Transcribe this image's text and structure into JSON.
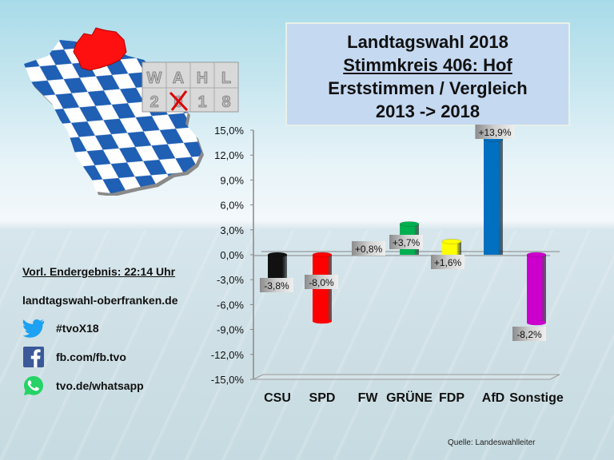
{
  "title": {
    "line1": "Landtagswahl 2018",
    "line2": "Stimmkreis 406: Hof",
    "line3": "Erststimmen / Vergleich",
    "line4": "2013 -> 2018"
  },
  "logo": {
    "row1": [
      "W",
      "A",
      "H",
      "L"
    ],
    "row2": [
      "2",
      "0",
      "1",
      "8"
    ]
  },
  "info": {
    "result_status": "Vorl. Endergebnis: 22:14 Uhr",
    "website": "landtagswahl-oberfranken.de",
    "social": [
      {
        "icon": "twitter-icon",
        "label": "#tvoX18"
      },
      {
        "icon": "facebook-icon",
        "label": "fb.com/fb.tvo"
      },
      {
        "icon": "whatsapp-icon",
        "label": "tvo.de/whatsapp"
      }
    ]
  },
  "source": "Quelle: Landeswahlleiter",
  "chart_data": {
    "type": "bar",
    "title": "Landtagswahl 2018 – Stimmkreis 406: Hof – Erststimmen / Vergleich 2013 -> 2018",
    "xlabel": "",
    "ylabel": "",
    "categories": [
      "CSU",
      "SPD",
      "FW",
      "GRÜNE",
      "FDP",
      "AfD",
      "Sonstige"
    ],
    "values": [
      -3.8,
      -8.0,
      0.8,
      3.7,
      1.6,
      13.9,
      -8.2
    ],
    "data_labels": [
      "-3,8%",
      "-8,0%",
      "+0,8%",
      "+3,7%",
      "+1,6%",
      "+13,9%",
      "-8,2%"
    ],
    "colors": [
      "#111111",
      "#ff0000",
      "#9e9e9e",
      "#00b050",
      "#ffff00",
      "#0070c0",
      "#cc00cc"
    ],
    "ylim": [
      -15,
      15
    ],
    "yticks": [
      15,
      12,
      9,
      6,
      3,
      0,
      -3,
      -6,
      -9,
      -12,
      -15
    ],
    "ytick_labels": [
      "15,0%",
      "12,0%",
      "9,0%",
      "6,0%",
      "3,0%",
      "0,0%",
      "-3,0%",
      "-6,0%",
      "-9,0%",
      "-12,0%",
      "-15,0%"
    ],
    "grid": false,
    "legend": "none"
  }
}
